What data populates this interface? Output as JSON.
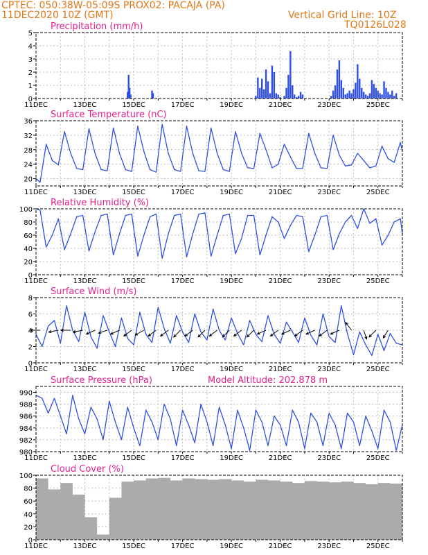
{
  "header": {
    "line1": "CPTEC:   050:38W-05:09S   PROX02: PACAJA (PA)",
    "line2": "11DEC2020 10Z (GMT)",
    "grid_note": "Vertical Grid Line: 10Z",
    "code": "TQ0126L028"
  },
  "x_axis": {
    "ticks": [
      "11DEC",
      "13DEC",
      "15DEC",
      "17DEC",
      "19DEC",
      "21DEC",
      "23DEC",
      "25DEC"
    ],
    "start": "2020-12-11T10:00Z",
    "end": "2020-12-26T10:00Z"
  },
  "colors": {
    "series": "#2f4fe4",
    "title": "#e0208e",
    "header": "#e07818",
    "cloud": "#ababab",
    "wind_arrow": "#000000",
    "grid": "#bbbbbb"
  },
  "chart_data": [
    {
      "type": "bar",
      "title": "Precipitation (mm/h)",
      "ylim": [
        0,
        5
      ],
      "yticks": [
        0,
        1,
        2,
        3,
        4,
        5
      ],
      "x": [
        "2020-12-15T04Z",
        "2020-12-15T05Z",
        "2020-12-15T06Z",
        "2020-12-15T07Z",
        "2020-12-16T04Z",
        "2020-12-16T05Z",
        "2020-12-20T10Z",
        "2020-12-20T12Z",
        "2020-12-20T14Z",
        "2020-12-20T16Z",
        "2020-12-20T18Z",
        "2020-12-20T20Z",
        "2020-12-20T22Z",
        "2020-12-21T00Z",
        "2020-12-21T02Z",
        "2020-12-21T04Z",
        "2020-12-21T06Z",
        "2020-12-21T08Z",
        "2020-12-21T10Z",
        "2020-12-21T14Z",
        "2020-12-21T16Z",
        "2020-12-21T18Z",
        "2020-12-21T20Z",
        "2020-12-21T22Z",
        "2020-12-22T00Z",
        "2020-12-22T02Z",
        "2020-12-22T04Z",
        "2020-12-22T06Z",
        "2020-12-22T08Z",
        "2020-12-23T12Z",
        "2020-12-23T14Z",
        "2020-12-23T16Z",
        "2020-12-23T18Z",
        "2020-12-23T20Z",
        "2020-12-23T22Z",
        "2020-12-24T00Z",
        "2020-12-24T02Z",
        "2020-12-24T04Z",
        "2020-12-24T06Z",
        "2020-12-24T08Z",
        "2020-12-24T10Z",
        "2020-12-24T12Z",
        "2020-12-24T14Z",
        "2020-12-24T16Z",
        "2020-12-24T18Z",
        "2020-12-24T20Z",
        "2020-12-24T22Z",
        "2020-12-25T00Z",
        "2020-12-25T02Z",
        "2020-12-25T04Z",
        "2020-12-25T06Z",
        "2020-12-25T08Z",
        "2020-12-25T10Z",
        "2020-12-25T12Z",
        "2020-12-25T14Z",
        "2020-12-25T16Z",
        "2020-12-25T18Z",
        "2020-12-25T20Z",
        "2020-12-25T22Z",
        "2020-12-26T00Z",
        "2020-12-26T02Z",
        "2020-12-26T04Z"
      ],
      "values": [
        0.5,
        1.8,
        0.8,
        0.3,
        0.6,
        0.4,
        0.2,
        1.6,
        0.8,
        1.5,
        0.7,
        2.2,
        1.3,
        0.4,
        2.5,
        2.0,
        0.4,
        0.3,
        0.1,
        0.2,
        0.8,
        1.8,
        3.6,
        1.0,
        0.3,
        0.1,
        0.2,
        0.5,
        0.3,
        0.2,
        0.6,
        1.0,
        2.2,
        2.9,
        1.4,
        0.8,
        0.3,
        0.4,
        0.6,
        0.4,
        0.7,
        1.2,
        2.6,
        1.5,
        0.8,
        0.5,
        0.3,
        0.2,
        0.4,
        1.4,
        1.1,
        0.8,
        0.6,
        0.4,
        0.3,
        1.3,
        0.8,
        0.5,
        0.3,
        0.6,
        0.2,
        0.4
      ]
    },
    {
      "type": "line",
      "title": "Surface Temperature (nC)",
      "ylim": [
        18,
        36
      ],
      "yticks": [
        20,
        24,
        28,
        32,
        36
      ],
      "x": [
        "2020-12-11T10Z",
        "2020-12-11T14Z",
        "2020-12-11T20Z",
        "2020-12-12T02Z",
        "2020-12-12T08Z",
        "2020-12-12T14Z",
        "2020-12-12T20Z",
        "2020-12-13T02Z",
        "2020-12-13T08Z",
        "2020-12-13T14Z",
        "2020-12-13T20Z",
        "2020-12-14T02Z",
        "2020-12-14T08Z",
        "2020-12-14T14Z",
        "2020-12-14T20Z",
        "2020-12-15T02Z",
        "2020-12-15T08Z",
        "2020-12-15T14Z",
        "2020-12-15T20Z",
        "2020-12-16T02Z",
        "2020-12-16T08Z",
        "2020-12-16T14Z",
        "2020-12-16T20Z",
        "2020-12-17T02Z",
        "2020-12-17T08Z",
        "2020-12-17T14Z",
        "2020-12-17T20Z",
        "2020-12-18T02Z",
        "2020-12-18T08Z",
        "2020-12-18T14Z",
        "2020-12-18T20Z",
        "2020-12-19T02Z",
        "2020-12-19T08Z",
        "2020-12-19T14Z",
        "2020-12-19T20Z",
        "2020-12-20T02Z",
        "2020-12-20T08Z",
        "2020-12-20T14Z",
        "2020-12-20T20Z",
        "2020-12-21T02Z",
        "2020-12-21T08Z",
        "2020-12-21T14Z",
        "2020-12-21T20Z",
        "2020-12-22T02Z",
        "2020-12-22T08Z",
        "2020-12-22T14Z",
        "2020-12-22T20Z",
        "2020-12-23T02Z",
        "2020-12-23T08Z",
        "2020-12-23T14Z",
        "2020-12-23T20Z",
        "2020-12-24T02Z",
        "2020-12-24T08Z",
        "2020-12-24T14Z",
        "2020-12-24T20Z",
        "2020-12-25T02Z",
        "2020-12-25T08Z",
        "2020-12-25T14Z",
        "2020-12-25T20Z",
        "2020-12-26T02Z",
        "2020-12-26T08Z",
        "2020-12-26T10Z"
      ],
      "values": [
        20,
        19,
        29.5,
        25,
        23.8,
        33,
        27,
        22.8,
        22.5,
        33.8,
        27,
        22.5,
        22.2,
        34,
        27,
        22.5,
        22,
        34.5,
        27.5,
        22.5,
        21.8,
        35,
        27,
        22.5,
        22,
        34.5,
        27,
        22.2,
        22,
        34,
        27,
        22.5,
        22,
        33,
        27,
        23,
        22.8,
        32.5,
        28,
        23,
        24,
        29.5,
        26,
        22.8,
        22.8,
        32.5,
        27,
        23,
        22.8,
        32,
        26.5,
        23.5,
        23.8,
        27,
        25,
        23,
        23.5,
        29,
        25.5,
        24.5,
        30,
        27.5
      ]
    },
    {
      "type": "line",
      "title": "Relative Humidity (%)",
      "ylim": [
        0,
        100
      ],
      "yticks": [
        0,
        20,
        40,
        60,
        80,
        100
      ],
      "x": [
        "2020-12-11T10Z",
        "2020-12-11T14Z",
        "2020-12-11T20Z",
        "2020-12-12T02Z",
        "2020-12-12T08Z",
        "2020-12-12T14Z",
        "2020-12-12T20Z",
        "2020-12-13T02Z",
        "2020-12-13T08Z",
        "2020-12-13T14Z",
        "2020-12-13T20Z",
        "2020-12-14T02Z",
        "2020-12-14T08Z",
        "2020-12-14T14Z",
        "2020-12-14T20Z",
        "2020-12-15T02Z",
        "2020-12-15T08Z",
        "2020-12-15T14Z",
        "2020-12-15T20Z",
        "2020-12-16T02Z",
        "2020-12-16T08Z",
        "2020-12-16T14Z",
        "2020-12-16T20Z",
        "2020-12-17T02Z",
        "2020-12-17T08Z",
        "2020-12-17T14Z",
        "2020-12-17T20Z",
        "2020-12-18T02Z",
        "2020-12-18T08Z",
        "2020-12-18T14Z",
        "2020-12-18T20Z",
        "2020-12-19T02Z",
        "2020-12-19T08Z",
        "2020-12-19T14Z",
        "2020-12-19T20Z",
        "2020-12-20T02Z",
        "2020-12-20T08Z",
        "2020-12-20T14Z",
        "2020-12-20T20Z",
        "2020-12-21T02Z",
        "2020-12-21T08Z",
        "2020-12-21T14Z",
        "2020-12-21T20Z",
        "2020-12-22T02Z",
        "2020-12-22T08Z",
        "2020-12-22T14Z",
        "2020-12-22T20Z",
        "2020-12-23T02Z",
        "2020-12-23T08Z",
        "2020-12-23T14Z",
        "2020-12-23T20Z",
        "2020-12-24T02Z",
        "2020-12-24T08Z",
        "2020-12-24T14Z",
        "2020-12-24T20Z",
        "2020-12-25T02Z",
        "2020-12-25T08Z",
        "2020-12-25T14Z",
        "2020-12-25T20Z",
        "2020-12-26T02Z",
        "2020-12-26T08Z",
        "2020-12-26T10Z"
      ],
      "values": [
        100,
        98,
        42,
        60,
        85,
        38,
        62,
        88,
        90,
        36,
        65,
        90,
        92,
        30,
        62,
        90,
        92,
        28,
        60,
        88,
        92,
        25,
        62,
        90,
        92,
        27,
        62,
        92,
        94,
        28,
        60,
        90,
        92,
        32,
        55,
        90,
        90,
        30,
        60,
        88,
        80,
        55,
        75,
        90,
        88,
        35,
        60,
        88,
        90,
        38,
        62,
        80,
        90,
        70,
        100,
        78,
        85,
        45,
        60,
        80,
        85,
        62
      ]
    },
    {
      "type": "line",
      "title": "Surface Wind (m/s)",
      "ylim": [
        0,
        8
      ],
      "yticks": [
        0,
        2,
        4,
        6,
        8
      ],
      "x": [
        "2020-12-11T10Z",
        "2020-12-11T16Z",
        "2020-12-11T22Z",
        "2020-12-12T04Z",
        "2020-12-12T10Z",
        "2020-12-12T16Z",
        "2020-12-12T22Z",
        "2020-12-13T04Z",
        "2020-12-13T10Z",
        "2020-12-13T16Z",
        "2020-12-13T22Z",
        "2020-12-14T04Z",
        "2020-12-14T10Z",
        "2020-12-14T16Z",
        "2020-12-14T22Z",
        "2020-12-15T04Z",
        "2020-12-15T10Z",
        "2020-12-15T16Z",
        "2020-12-15T22Z",
        "2020-12-16T04Z",
        "2020-12-16T10Z",
        "2020-12-16T16Z",
        "2020-12-16T22Z",
        "2020-12-17T04Z",
        "2020-12-17T10Z",
        "2020-12-17T16Z",
        "2020-12-17T22Z",
        "2020-12-18T04Z",
        "2020-12-18T10Z",
        "2020-12-18T16Z",
        "2020-12-18T22Z",
        "2020-12-19T04Z",
        "2020-12-19T10Z",
        "2020-12-19T16Z",
        "2020-12-19T22Z",
        "2020-12-20T04Z",
        "2020-12-20T10Z",
        "2020-12-20T16Z",
        "2020-12-20T22Z",
        "2020-12-21T04Z",
        "2020-12-21T10Z",
        "2020-12-21T16Z",
        "2020-12-21T22Z",
        "2020-12-22T04Z",
        "2020-12-22T10Z",
        "2020-12-22T16Z",
        "2020-12-22T22Z",
        "2020-12-23T04Z",
        "2020-12-23T10Z",
        "2020-12-23T16Z",
        "2020-12-23T22Z",
        "2020-12-24T04Z",
        "2020-12-24T10Z",
        "2020-12-24T16Z",
        "2020-12-24T22Z",
        "2020-12-25T04Z",
        "2020-12-25T10Z",
        "2020-12-25T16Z",
        "2020-12-25T22Z",
        "2020-12-26T04Z",
        "2020-12-26T10Z"
      ],
      "values": [
        3.5,
        2.0,
        4.5,
        5.2,
        2.4,
        7.0,
        4.0,
        2.6,
        6.2,
        3.2,
        1.8,
        5.8,
        3.8,
        2.0,
        5.5,
        3.0,
        2.2,
        6.2,
        3.5,
        2.5,
        6.8,
        4.2,
        2.4,
        5.8,
        3.8,
        2.5,
        6.0,
        3.8,
        2.8,
        6.6,
        4.0,
        2.8,
        5.5,
        3.6,
        2.2,
        5.2,
        3.5,
        2.6,
        5.8,
        3.5,
        2.4,
        5.0,
        3.8,
        2.5,
        5.5,
        3.4,
        2.2,
        6.0,
        3.2,
        2.5,
        7.0,
        3.6,
        1.0,
        3.8,
        2.2,
        0.9,
        3.5,
        1.5,
        3.6,
        2.4,
        2.2
      ],
      "arrows": {
        "x": [
          "2020-12-11T14Z",
          "2020-12-12T08Z",
          "2020-12-12T20Z",
          "2020-12-13T08Z",
          "2020-12-13T20Z",
          "2020-12-14T08Z",
          "2020-12-14T20Z",
          "2020-12-15T08Z",
          "2020-12-15T20Z",
          "2020-12-16T08Z",
          "2020-12-16T20Z",
          "2020-12-17T08Z",
          "2020-12-17T20Z",
          "2020-12-18T08Z",
          "2020-12-18T20Z",
          "2020-12-19T08Z",
          "2020-12-19T20Z",
          "2020-12-20T08Z",
          "2020-12-20T20Z",
          "2020-12-21T08Z",
          "2020-12-21T20Z",
          "2020-12-22T08Z",
          "2020-12-22T20Z",
          "2020-12-23T08Z",
          "2020-12-23T20Z",
          "2020-12-24T08Z",
          "2020-12-24T20Z",
          "2020-12-25T08Z",
          "2020-12-25T20Z"
        ],
        "u": [
          -1.0,
          -1.0,
          -1.0,
          -1.0,
          -0.9,
          -0.9,
          -0.9,
          -0.8,
          -0.9,
          -0.8,
          -0.8,
          -0.7,
          -0.8,
          -0.7,
          -0.8,
          -0.7,
          -0.8,
          -0.7,
          -0.9,
          -0.8,
          -0.9,
          -0.8,
          -0.9,
          -0.8,
          -0.9,
          -0.6,
          0.3,
          -0.7,
          -0.5
        ],
        "v": [
          0.0,
          -0.2,
          0.0,
          -0.2,
          -0.4,
          -0.3,
          -0.4,
          -0.6,
          -0.5,
          -0.6,
          -0.6,
          -0.7,
          -0.6,
          -0.7,
          -0.6,
          -0.7,
          -0.6,
          -0.7,
          -0.4,
          -0.6,
          -0.4,
          -0.6,
          -0.4,
          -0.6,
          -0.4,
          0.8,
          -0.9,
          -0.7,
          -0.8
        ]
      }
    },
    {
      "type": "line",
      "title": "Surface Pressure (hPa)",
      "annotation": "Model Altitude: 202.878  m",
      "ylim": [
        980,
        991
      ],
      "yticks": [
        980,
        982,
        984,
        986,
        988,
        990
      ],
      "x": [
        "2020-12-11T10Z",
        "2020-12-11T16Z",
        "2020-12-11T22Z",
        "2020-12-12T04Z",
        "2020-12-12T10Z",
        "2020-12-12T16Z",
        "2020-12-12T22Z",
        "2020-12-13T04Z",
        "2020-12-13T10Z",
        "2020-12-13T16Z",
        "2020-12-13T22Z",
        "2020-12-14T04Z",
        "2020-12-14T10Z",
        "2020-12-14T16Z",
        "2020-12-14T22Z",
        "2020-12-15T04Z",
        "2020-12-15T10Z",
        "2020-12-15T16Z",
        "2020-12-15T22Z",
        "2020-12-16T04Z",
        "2020-12-16T10Z",
        "2020-12-16T16Z",
        "2020-12-16T22Z",
        "2020-12-17T04Z",
        "2020-12-17T10Z",
        "2020-12-17T16Z",
        "2020-12-17T22Z",
        "2020-12-18T04Z",
        "2020-12-18T10Z",
        "2020-12-18T16Z",
        "2020-12-18T22Z",
        "2020-12-19T04Z",
        "2020-12-19T10Z",
        "2020-12-19T16Z",
        "2020-12-19T22Z",
        "2020-12-20T04Z",
        "2020-12-20T10Z",
        "2020-12-20T16Z",
        "2020-12-20T22Z",
        "2020-12-21T04Z",
        "2020-12-21T10Z",
        "2020-12-21T16Z",
        "2020-12-21T22Z",
        "2020-12-22T04Z",
        "2020-12-22T10Z",
        "2020-12-22T16Z",
        "2020-12-22T22Z",
        "2020-12-23T04Z",
        "2020-12-23T10Z",
        "2020-12-23T16Z",
        "2020-12-23T22Z",
        "2020-12-24T04Z",
        "2020-12-24T10Z",
        "2020-12-24T16Z",
        "2020-12-24T22Z",
        "2020-12-25T04Z",
        "2020-12-25T10Z",
        "2020-12-25T16Z",
        "2020-12-25T22Z",
        "2020-12-26T04Z",
        "2020-12-26T10Z"
      ],
      "values": [
        989.5,
        989.0,
        986.5,
        989.0,
        986.0,
        983.0,
        989.5,
        985.5,
        983.0,
        987.5,
        985.5,
        982.0,
        988.5,
        985.0,
        982.0,
        987.5,
        984.0,
        981.0,
        987.0,
        985.0,
        982.0,
        988.0,
        985.5,
        981.0,
        987.0,
        984.5,
        981.5,
        988.0,
        985.0,
        981.0,
        987.5,
        984.5,
        980.5,
        987.0,
        984.0,
        980.2,
        987.0,
        985.0,
        981.0,
        986.0,
        984.5,
        981.0,
        987.0,
        985.0,
        980.5,
        986.5,
        985.0,
        981.0,
        986.5,
        984.5,
        980.5,
        986.5,
        985.0,
        981.0,
        986.0,
        983.5,
        980.5,
        987.0,
        985.0,
        980.2,
        984.5
      ]
    },
    {
      "type": "bar",
      "title": "Cloud Cover (%)",
      "ylim": [
        0,
        100
      ],
      "yticks": [
        0,
        20,
        40,
        60,
        80,
        100
      ],
      "x": [
        "2020-12-11T10Z",
        "2020-12-11T22Z",
        "2020-12-12T10Z",
        "2020-12-12T22Z",
        "2020-12-13T10Z",
        "2020-12-13T22Z",
        "2020-12-14T10Z",
        "2020-12-14T22Z",
        "2020-12-15T10Z",
        "2020-12-15T22Z",
        "2020-12-16T10Z",
        "2020-12-16T22Z",
        "2020-12-17T10Z",
        "2020-12-17T22Z",
        "2020-12-18T10Z",
        "2020-12-18T22Z",
        "2020-12-19T10Z",
        "2020-12-19T22Z",
        "2020-12-20T10Z",
        "2020-12-20T22Z",
        "2020-12-21T10Z",
        "2020-12-21T22Z",
        "2020-12-22T10Z",
        "2020-12-22T22Z",
        "2020-12-23T10Z",
        "2020-12-23T22Z",
        "2020-12-24T10Z",
        "2020-12-24T22Z",
        "2020-12-25T10Z",
        "2020-12-25T22Z",
        "2020-12-26T10Z"
      ],
      "values": [
        95,
        78,
        88,
        70,
        35,
        8,
        65,
        90,
        92,
        95,
        96,
        92,
        95,
        94,
        93,
        94,
        92,
        90,
        93,
        92,
        90,
        88,
        91,
        90,
        89,
        90,
        88,
        86,
        88,
        87,
        90
      ]
    }
  ]
}
